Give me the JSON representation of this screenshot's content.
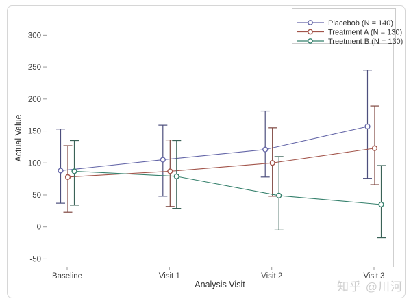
{
  "watermark": {
    "text": "知乎 @川河"
  },
  "chart_data": {
    "type": "line",
    "title": "",
    "xlabel": "Analysis Visit",
    "ylabel": "Actual Value",
    "categories": [
      "Baseline",
      "Visit 1",
      "Visit 2",
      "Visit 3"
    ],
    "y_ticks": [
      -50,
      0,
      50,
      100,
      150,
      200,
      250,
      300
    ],
    "ylim": [
      -62,
      340
    ],
    "grid": false,
    "legend_position": "top-right-inside",
    "error_bars": true,
    "series": [
      {
        "name": "Placebob (N = 140)",
        "color": "#6365a7",
        "errorbar_color": "#4d4f7d",
        "means": [
          88,
          105,
          121,
          157
        ],
        "ci_low": [
          37,
          48,
          78,
          76
        ],
        "ci_high": [
          153,
          159,
          181,
          245
        ]
      },
      {
        "name": "Treatment A (N = 130)",
        "color": "#a2544a",
        "errorbar_color": "#7e463f",
        "means": [
          78,
          87,
          100,
          123
        ],
        "ci_low": [
          23,
          32,
          48,
          66
        ],
        "ci_high": [
          127,
          136,
          155,
          189
        ]
      },
      {
        "name": "Treetment B (N = 130)",
        "color": "#35806c",
        "errorbar_color": "#3a6257",
        "means": [
          87,
          79,
          49,
          35
        ],
        "ci_low": [
          34,
          29,
          -5,
          -17
        ],
        "ci_high": [
          135,
          135,
          110,
          96
        ]
      }
    ]
  }
}
